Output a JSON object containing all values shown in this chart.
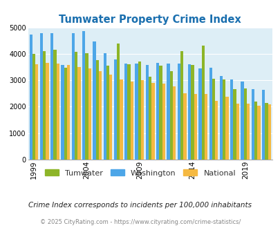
{
  "title": "Tumwater Property Crime Index",
  "title_color": "#1a6faf",
  "years": [
    1999,
    2000,
    2001,
    2002,
    2003,
    2004,
    2005,
    2006,
    2007,
    2008,
    2009,
    2010,
    2011,
    2012,
    2013,
    2014,
    2015,
    2016,
    2017,
    2018,
    2019,
    2020,
    2021
  ],
  "tumwater": [
    4000,
    4100,
    4150,
    3480,
    4080,
    4020,
    3750,
    3550,
    4380,
    3610,
    3700,
    3130,
    3550,
    3350,
    4100,
    3590,
    4300,
    3050,
    3020,
    2670,
    2700,
    2200,
    2150
  ],
  "washington": [
    4720,
    4780,
    4770,
    3580,
    4780,
    4870,
    4470,
    4020,
    3790,
    3640,
    3620,
    3580,
    3660,
    3640,
    3620,
    3610,
    3460,
    3480,
    3160,
    3040,
    2960,
    2670,
    2650
  ],
  "national": [
    3600,
    3650,
    3630,
    3590,
    3490,
    3440,
    3340,
    3220,
    3020,
    2960,
    3000,
    2900,
    2880,
    2760,
    2500,
    2470,
    2490,
    2220,
    2380,
    2120,
    2120,
    2050,
    2100
  ],
  "tumwater_color": "#8db528",
  "washington_color": "#4da6e8",
  "national_color": "#f5b942",
  "plot_bg": "#ddeef6",
  "ylabel_max": 5000,
  "yticks": [
    0,
    1000,
    2000,
    3000,
    4000,
    5000
  ],
  "xlabel_ticks": [
    1999,
    2004,
    2009,
    2014,
    2019
  ],
  "subtitle": "Crime Index corresponds to incidents per 100,000 inhabitants",
  "footer": "© 2025 CityRating.com - https://www.cityrating.com/crime-statistics/",
  "legend_labels": [
    "Tumwater",
    "Washington",
    "National"
  ]
}
